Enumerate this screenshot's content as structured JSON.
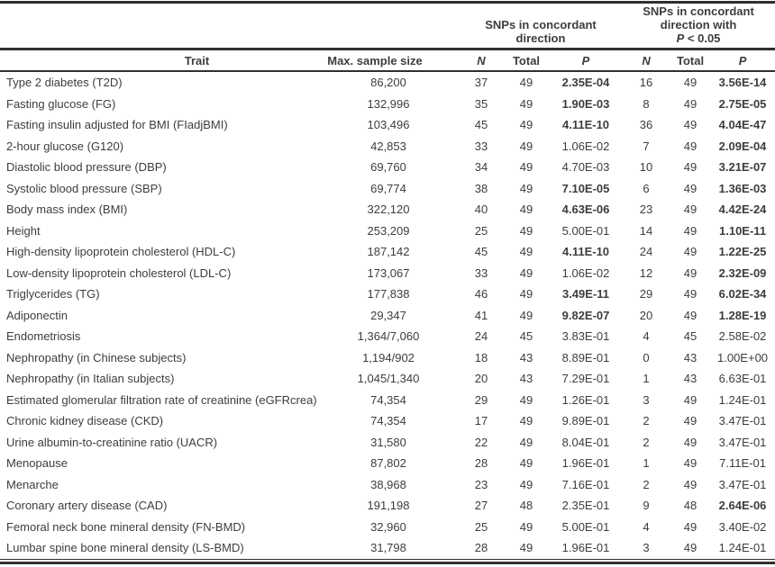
{
  "colors": {
    "text": "#3d3d3d",
    "rule": "#2f2f2f",
    "background": "#ffffff"
  },
  "table": {
    "group_headers": [
      {
        "lines": [
          "SNPs in concordant",
          "direction"
        ]
      },
      {
        "lines": [
          "SNPs in concordant",
          "direction with"
        ],
        "p_line": {
          "italic": "P",
          "rest": " < 0.05"
        }
      }
    ],
    "columns": [
      "Trait",
      "Max. sample size",
      "N",
      "Total",
      "P",
      "N",
      "Total",
      "P"
    ],
    "rows": [
      {
        "trait": "Type 2 diabetes (T2D)",
        "max_sample_size": "86,200",
        "concordant": {
          "n": "37",
          "total": "49",
          "p": "2.35E-04",
          "p_bold": true
        },
        "concordant_p05": {
          "n": "16",
          "total": "49",
          "p": "3.56E-14",
          "p_bold": true
        }
      },
      {
        "trait": "Fasting glucose (FG)",
        "max_sample_size": "132,996",
        "concordant": {
          "n": "35",
          "total": "49",
          "p": "1.90E-03",
          "p_bold": true
        },
        "concordant_p05": {
          "n": "8",
          "total": "49",
          "p": "2.75E-05",
          "p_bold": true
        }
      },
      {
        "trait": "Fasting insulin adjusted for BMI (FIadjBMI)",
        "max_sample_size": "103,496",
        "concordant": {
          "n": "45",
          "total": "49",
          "p": "4.11E-10",
          "p_bold": true
        },
        "concordant_p05": {
          "n": "36",
          "total": "49",
          "p": "4.04E-47",
          "p_bold": true
        }
      },
      {
        "trait": "2-hour glucose (G120)",
        "max_sample_size": "42,853",
        "concordant": {
          "n": "33",
          "total": "49",
          "p": "1.06E-02",
          "p_bold": false
        },
        "concordant_p05": {
          "n": "7",
          "total": "49",
          "p": "2.09E-04",
          "p_bold": true
        }
      },
      {
        "trait": "Diastolic blood pressure (DBP)",
        "max_sample_size": "69,760",
        "concordant": {
          "n": "34",
          "total": "49",
          "p": "4.70E-03",
          "p_bold": false
        },
        "concordant_p05": {
          "n": "10",
          "total": "49",
          "p": "3.21E-07",
          "p_bold": true
        }
      },
      {
        "trait": "Systolic blood pressure (SBP)",
        "max_sample_size": "69,774",
        "concordant": {
          "n": "38",
          "total": "49",
          "p": "7.10E-05",
          "p_bold": true
        },
        "concordant_p05": {
          "n": "6",
          "total": "49",
          "p": "1.36E-03",
          "p_bold": true
        }
      },
      {
        "trait": "Body mass index (BMI)",
        "max_sample_size": "322,120",
        "concordant": {
          "n": "40",
          "total": "49",
          "p": "4.63E-06",
          "p_bold": true
        },
        "concordant_p05": {
          "n": "23",
          "total": "49",
          "p": "4.42E-24",
          "p_bold": true
        }
      },
      {
        "trait": "Height",
        "max_sample_size": "253,209",
        "concordant": {
          "n": "25",
          "total": "49",
          "p": "5.00E-01",
          "p_bold": false
        },
        "concordant_p05": {
          "n": "14",
          "total": "49",
          "p": "1.10E-11",
          "p_bold": true
        }
      },
      {
        "trait": "High-density lipoprotein cholesterol (HDL-C)",
        "max_sample_size": "187,142",
        "concordant": {
          "n": "45",
          "total": "49",
          "p": "4.11E-10",
          "p_bold": true
        },
        "concordant_p05": {
          "n": "24",
          "total": "49",
          "p": "1.22E-25",
          "p_bold": true
        }
      },
      {
        "trait": "Low-density lipoprotein cholesterol (LDL-C)",
        "max_sample_size": "173,067",
        "concordant": {
          "n": "33",
          "total": "49",
          "p": "1.06E-02",
          "p_bold": false
        },
        "concordant_p05": {
          "n": "12",
          "total": "49",
          "p": "2.32E-09",
          "p_bold": true
        }
      },
      {
        "trait": "Triglycerides (TG)",
        "max_sample_size": "177,838",
        "concordant": {
          "n": "46",
          "total": "49",
          "p": "3.49E-11",
          "p_bold": true
        },
        "concordant_p05": {
          "n": "29",
          "total": "49",
          "p": "6.02E-34",
          "p_bold": true
        }
      },
      {
        "trait": "Adiponectin",
        "max_sample_size": "29,347",
        "concordant": {
          "n": "41",
          "total": "49",
          "p": "9.82E-07",
          "p_bold": true
        },
        "concordant_p05": {
          "n": "20",
          "total": "49",
          "p": "1.28E-19",
          "p_bold": true
        }
      },
      {
        "trait": "Endometriosis",
        "max_sample_size": "1,364/7,060",
        "concordant": {
          "n": "24",
          "total": "45",
          "p": "3.83E-01",
          "p_bold": false
        },
        "concordant_p05": {
          "n": "4",
          "total": "45",
          "p": "2.58E-02",
          "p_bold": false
        }
      },
      {
        "trait": "Nephropathy (in Chinese subjects)",
        "max_sample_size": "1,194/902",
        "concordant": {
          "n": "18",
          "total": "43",
          "p": "8.89E-01",
          "p_bold": false
        },
        "concordant_p05": {
          "n": "0",
          "total": "43",
          "p": "1.00E+00",
          "p_bold": false
        }
      },
      {
        "trait": "Nephropathy (in Italian subjects)",
        "max_sample_size": "1,045/1,340",
        "concordant": {
          "n": "20",
          "total": "43",
          "p": "7.29E-01",
          "p_bold": false
        },
        "concordant_p05": {
          "n": "1",
          "total": "43",
          "p": "6.63E-01",
          "p_bold": false
        }
      },
      {
        "trait": "Estimated glomerular filtration rate of creatinine (eGFRcrea)",
        "max_sample_size": "74,354",
        "concordant": {
          "n": "29",
          "total": "49",
          "p": "1.26E-01",
          "p_bold": false
        },
        "concordant_p05": {
          "n": "3",
          "total": "49",
          "p": "1.24E-01",
          "p_bold": false
        }
      },
      {
        "trait": "Chronic kidney disease (CKD)",
        "max_sample_size": "74,354",
        "concordant": {
          "n": "17",
          "total": "49",
          "p": "9.89E-01",
          "p_bold": false
        },
        "concordant_p05": {
          "n": "2",
          "total": "49",
          "p": "3.47E-01",
          "p_bold": false
        }
      },
      {
        "trait": "Urine albumin-to-creatinine ratio (UACR)",
        "max_sample_size": "31,580",
        "concordant": {
          "n": "22",
          "total": "49",
          "p": "8.04E-01",
          "p_bold": false
        },
        "concordant_p05": {
          "n": "2",
          "total": "49",
          "p": "3.47E-01",
          "p_bold": false
        }
      },
      {
        "trait": "Menopause",
        "max_sample_size": "87,802",
        "concordant": {
          "n": "28",
          "total": "49",
          "p": "1.96E-01",
          "p_bold": false
        },
        "concordant_p05": {
          "n": "1",
          "total": "49",
          "p": "7.11E-01",
          "p_bold": false
        }
      },
      {
        "trait": "Menarche",
        "max_sample_size": "38,968",
        "concordant": {
          "n": "23",
          "total": "49",
          "p": "7.16E-01",
          "p_bold": false
        },
        "concordant_p05": {
          "n": "2",
          "total": "49",
          "p": "3.47E-01",
          "p_bold": false
        }
      },
      {
        "trait": "Coronary artery disease (CAD)",
        "max_sample_size": "191,198",
        "concordant": {
          "n": "27",
          "total": "48",
          "p": "2.35E-01",
          "p_bold": false
        },
        "concordant_p05": {
          "n": "9",
          "total": "48",
          "p": "2.64E-06",
          "p_bold": true
        }
      },
      {
        "trait": "Femoral neck bone mineral density (FN-BMD)",
        "max_sample_size": "32,960",
        "concordant": {
          "n": "25",
          "total": "49",
          "p": "5.00E-01",
          "p_bold": false
        },
        "concordant_p05": {
          "n": "4",
          "total": "49",
          "p": "3.40E-02",
          "p_bold": false
        }
      },
      {
        "trait": "Lumbar spine bone mineral density (LS-BMD)",
        "max_sample_size": "31,798",
        "concordant": {
          "n": "28",
          "total": "49",
          "p": "1.96E-01",
          "p_bold": false
        },
        "concordant_p05": {
          "n": "3",
          "total": "49",
          "p": "1.24E-01",
          "p_bold": false
        }
      }
    ]
  }
}
